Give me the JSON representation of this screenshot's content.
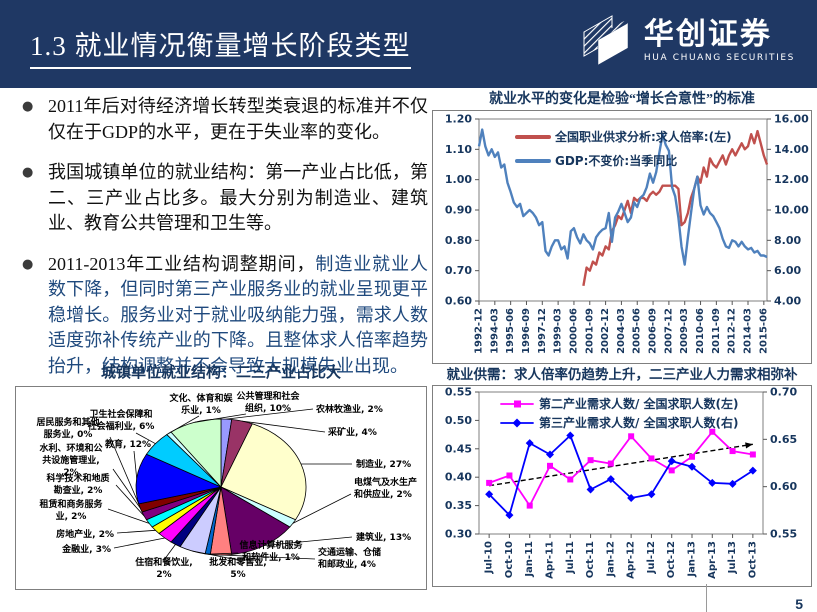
{
  "header": {
    "title": "1.3 就业情况衡量增长阶段类型",
    "logo_cn": "华创证券",
    "logo_en": "HUA CHUANG SECURITIES"
  },
  "bullets": [
    {
      "text": "2011年后对待经济增长转型类衰退的标准并不仅仅在于GDP的水平，更在于失业率的变化。"
    },
    {
      "text": "我国城镇单位的就业结构：第一产业占比低，第二、三产业占比多。最大分别为制造业、建筑业、教育公共管理和卫生等。"
    },
    {
      "prefix": "2011-2013年工业结构调整期间，",
      "highlight": "制造业就业人数下降，但同时第三产业服务业的就业呈现更平稳增长。服务业对于就业吸纳能力强，需求人数适度弥补传统产业的下降。且整体求人倍率趋势抬升，结构调整并不会导致大规模失业出现。"
    }
  ],
  "page_number": "5",
  "colors": {
    "header_bg": "#1F3864",
    "navy_text": "#17365D",
    "red_line": "#C0504D",
    "blue_line": "#4F81BD",
    "magenta_line": "#FF00FF",
    "blue2_line": "#0000FF"
  },
  "chart_data": [
    {
      "type": "line",
      "title": "就业水平的变化是检验“增长合意性”的标准",
      "x_ticks": [
        "1992-12",
        "1994-03",
        "1995-06",
        "1996-09",
        "1997-12",
        "1999-03",
        "2000-06",
        "2001-09",
        "2002-12",
        "2004-03",
        "2005-06",
        "2006-09",
        "2007-12",
        "2009-03",
        "2010-06",
        "2011-09",
        "2012-12",
        "2014-03",
        "2015-06"
      ],
      "x_tick_step": 5,
      "left_axis": {
        "min": 0.6,
        "max": 1.2,
        "ticks": [
          "1.20",
          "1.10",
          "1.00",
          "0.90",
          "0.80",
          "0.70",
          "0.60"
        ]
      },
      "right_axis": {
        "min": 4.0,
        "max": 16.0,
        "ticks": [
          "16.00",
          "14.00",
          "12.00",
          "10.00",
          "8.00",
          "6.00",
          "4.00"
        ]
      },
      "legend_position": "top-left-inside",
      "series": [
        {
          "name": "全国职业供求分析:求人倍率:(左)",
          "color": "#C0504D",
          "axis": "left",
          "start_index": 33,
          "values": [
            0.65,
            0.71,
            0.7,
            0.73,
            0.72,
            0.76,
            0.75,
            0.78,
            0.77,
            0.83,
            0.85,
            0.88,
            0.87,
            0.9,
            0.93,
            0.89,
            0.94,
            0.93,
            0.94,
            0.94,
            0.93,
            0.95,
            0.96,
            0.95,
            0.96,
            0.98,
            0.98,
            0.98,
            0.98,
            0.98,
            0.97,
            0.85,
            0.86,
            0.89,
            0.94,
            0.97,
            1.01,
            0.99,
            1.04,
            1.01,
            1.07,
            1.05,
            1.04,
            1.06,
            1.08,
            1.05,
            1.08,
            1.1,
            1.08,
            1.1,
            1.12,
            1.1,
            1.11,
            1.15,
            1.12,
            1.16,
            1.12,
            1.08,
            1.05
          ]
        },
        {
          "name": "GDP:不变价:当季同比",
          "color": "#4F81BD",
          "axis": "right",
          "start_index": 0,
          "values": [
            14.2,
            15.3,
            14.2,
            13.6,
            14.0,
            13.5,
            13.8,
            12.8,
            13.0,
            11.8,
            11.2,
            10.5,
            10.2,
            10.4,
            9.6,
            9.8,
            10.0,
            9.8,
            9.5,
            9.0,
            9.2,
            7.3,
            7.0,
            7.6,
            8.0,
            8.0,
            7.4,
            7.6,
            6.8,
            8.6,
            8.8,
            8.2,
            7.8,
            8.4,
            8.0,
            7.8,
            7.4,
            8.2,
            8.5,
            8.7,
            8.8,
            9.8,
            7.9,
            9.5,
            9.9,
            10.4,
            9.8,
            9.2,
            9.5,
            10.5,
            10.2,
            10.8,
            11.0,
            11.5,
            12.4,
            11.8,
            12.5,
            13.8,
            15.0,
            14.3,
            13.9,
            11.5,
            10.9,
            9.5,
            7.6,
            6.4,
            8.2,
            9.8,
            11.4,
            12.2,
            10.3,
            9.7,
            10.2,
            9.8,
            9.6,
            9.2,
            8.8,
            8.1,
            7.6,
            7.5,
            8.0,
            7.9,
            7.6,
            7.9,
            7.6,
            7.4,
            7.5,
            7.2,
            7.3,
            7.0,
            7.0,
            6.9
          ]
        }
      ]
    },
    {
      "type": "pie",
      "title": "城镇单位就业结构：二三产业占比大",
      "start_angle": "top",
      "direction": "clockwise",
      "slices": [
        {
          "name": "农林牧渔业",
          "value": 2,
          "color": "#9999FF",
          "label_lines": [
            "农林牧渔业, 2%"
          ]
        },
        {
          "name": "采矿业",
          "value": 4,
          "color": "#993366",
          "label_lines": [
            "采矿业, 4%"
          ]
        },
        {
          "name": "制造业",
          "value": 27,
          "color": "#FFFFCC",
          "label_lines": [
            "制造业, 27%"
          ]
        },
        {
          "name": "电煤气及水生产和供应业",
          "value": 2,
          "color": "#CCFFFF",
          "label_lines": [
            "电煤气及水生产",
            "和供应业, 2%"
          ]
        },
        {
          "name": "建筑业",
          "value": 13,
          "color": "#660066",
          "label_lines": [
            "建筑业, 13%"
          ]
        },
        {
          "name": "交通运输、仓储和邮政业",
          "value": 4,
          "color": "#FF8080",
          "label_lines": [
            "交通运输、仓储",
            "和邮政业, 4%"
          ]
        },
        {
          "name": "信息计算机服务和软件业",
          "value": 1,
          "color": "#0066CC",
          "label_lines": [
            "信息计算机服务",
            "和软件业, 1%"
          ]
        },
        {
          "name": "批发和零售业",
          "value": 5,
          "color": "#CCCCFF",
          "label_lines": [
            "批发和零售业,",
            "5%"
          ]
        },
        {
          "name": "住宿和餐饮业",
          "value": 2,
          "color": "#000080",
          "label_lines": [
            "住宿和餐饮业,",
            "2%"
          ]
        },
        {
          "name": "金融业",
          "value": 3,
          "color": "#FF00FF",
          "label_lines": [
            "金融业, 3%"
          ]
        },
        {
          "name": "房地产业",
          "value": 2,
          "color": "#FFFF00",
          "label_lines": [
            "房地产业, 2%"
          ]
        },
        {
          "name": "租赁和商务服务业",
          "value": 2,
          "color": "#00FFFF",
          "label_lines": [
            "租赁和商务服务",
            "业, 2%"
          ]
        },
        {
          "name": "科学技术和地质勘查业",
          "value": 2,
          "color": "#800080",
          "label_lines": [
            "科学技术和地质",
            "勘查业, 2%"
          ]
        },
        {
          "name": "水利、环境和公共设施管理业",
          "value": 2,
          "color": "#800000",
          "label_lines": [
            "水利、环境和公",
            "共设施管理业,",
            "2%"
          ]
        },
        {
          "name": "居民服务和其他服务业",
          "value": 0,
          "color": "#008080",
          "label_lines": [
            "居民服务和其他",
            "服务业, 0%"
          ]
        },
        {
          "name": "教育",
          "value": 12,
          "color": "#0000FF",
          "label_lines": [
            "教育, 12%"
          ]
        },
        {
          "name": "卫生社会保障和社会福利业",
          "value": 6,
          "color": "#00CCFF",
          "label_lines": [
            "卫生社会保障和",
            "社会福利业, 6%"
          ]
        },
        {
          "name": "文化、体育和娱乐业",
          "value": 1,
          "color": "#CCFFFF",
          "label_lines": [
            "文化、体育和娱",
            "乐业, 1%"
          ]
        },
        {
          "name": "公共管理和社会组织",
          "value": 10,
          "color": "#CCFFCC",
          "label_lines": [
            "公共管理和社会",
            "组织, 10%"
          ]
        }
      ]
    },
    {
      "type": "line",
      "title": "就业供需：求人倍率仍趋势上升，二三产业人力需求相弥补",
      "x_ticks": [
        "Jul-10",
        "Oct-10",
        "Jan-11",
        "Apr-11",
        "Jul-11",
        "Oct-11",
        "Jan-12",
        "Apr-12",
        "Jul-12",
        "Oct-12",
        "Jan-13",
        "Apr-13",
        "Jul-13",
        "Oct-13"
      ],
      "x_tick_step": 1,
      "category_axis": true,
      "left_axis": {
        "min": 0.3,
        "max": 0.55,
        "ticks": [
          "0.55",
          "0.50",
          "0.45",
          "0.40",
          "0.35",
          "0.30"
        ]
      },
      "right_axis": {
        "min": 0.55,
        "max": 0.7,
        "ticks": [
          "0.70",
          "0.65",
          "0.60",
          "0.55"
        ]
      },
      "legend_position": "top-left-inside",
      "series": [
        {
          "name": "第二产业需求人数/ 全国求职人数(左)",
          "color": "#FF00FF",
          "axis": "left",
          "marker": "square",
          "start_index": 0,
          "values": [
            0.39,
            0.403,
            0.35,
            0.42,
            0.396,
            0.43,
            0.424,
            0.472,
            0.433,
            0.412,
            0.436,
            0.48,
            0.446,
            0.44
          ]
        },
        {
          "name": "第三产业需求人数/ 全国求职人数(右)",
          "color": "#0000FF",
          "axis": "right",
          "marker": "diamond",
          "start_index": 0,
          "values": [
            0.592,
            0.57,
            0.646,
            0.634,
            0.654,
            0.597,
            0.608,
            0.588,
            0.592,
            0.627,
            0.621,
            0.604,
            0.603,
            0.617
          ]
        }
      ],
      "trend": {
        "axis": "left",
        "start": 0.385,
        "end": 0.458,
        "style": "dashed-arrow",
        "color": "#000000"
      }
    }
  ]
}
